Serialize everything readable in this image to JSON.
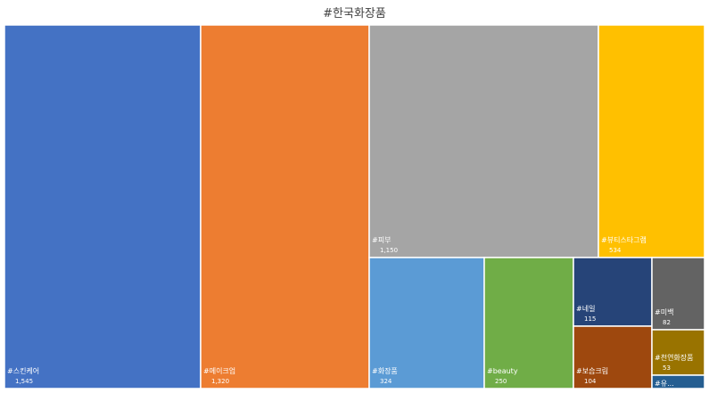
{
  "chart_data": {
    "type": "treemap",
    "title": "#한국화장품",
    "items": [
      {
        "label": "#스킨케어",
        "value_label": "1,545",
        "value": 1545,
        "color": "#4472C4"
      },
      {
        "label": "#메이크업",
        "value_label": "1,320",
        "value": 1320,
        "color": "#ED7D31"
      },
      {
        "label": "#피부",
        "value_label": "1,150",
        "value": 1150,
        "color": "#A5A5A5"
      },
      {
        "label": "#뷰티스타그램",
        "value_label": "534",
        "value": 534,
        "color": "#FFC000"
      },
      {
        "label": "#화장품",
        "value_label": "324",
        "value": 324,
        "color": "#5B9BD5"
      },
      {
        "label": "#beauty",
        "value_label": "250",
        "value": 250,
        "color": "#70AD47"
      },
      {
        "label": "#네일",
        "value_label": "115",
        "value": 115,
        "color": "#264478"
      },
      {
        "label": "#보습크림",
        "value_label": "104",
        "value": 104,
        "color": "#9E480E"
      },
      {
        "label": "#미백",
        "value_label": "82",
        "value": 82,
        "color": "#636363"
      },
      {
        "label": "#천연화장품",
        "value_label": "53",
        "value": 53,
        "color": "#997300"
      },
      {
        "label": "#유...",
        "value_label": "",
        "value": 40,
        "color": "#255E91"
      }
    ]
  }
}
